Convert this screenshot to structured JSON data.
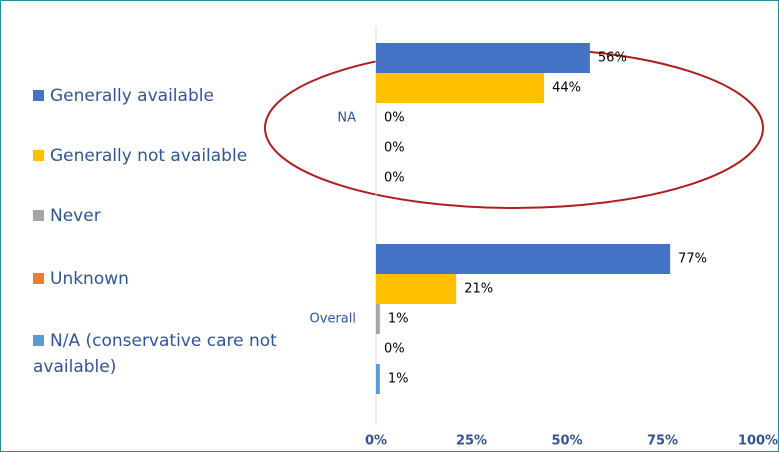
{
  "chart_data": {
    "type": "bar",
    "categories": [
      "NA",
      "Overall"
    ],
    "series": [
      {
        "name": "Generally available",
        "color": "#4472c4",
        "values": [
          56,
          77
        ],
        "value_labels": [
          "56%",
          "77%"
        ]
      },
      {
        "name": "Generally not available",
        "color": "#ffc000",
        "values": [
          44,
          21
        ],
        "value_labels": [
          "44%",
          "21%"
        ]
      },
      {
        "name": "Never",
        "color": "#a5a5a5",
        "values": [
          0,
          1
        ],
        "value_labels": [
          "0%",
          "1%"
        ]
      },
      {
        "name": "Unknown",
        "color": "#ed7d31",
        "values": [
          0,
          0
        ],
        "value_labels": [
          "0%",
          "0%"
        ]
      },
      {
        "name": "N/A (conservative care not available)",
        "color": "#5b9bd5",
        "values": [
          0,
          1
        ],
        "value_labels": [
          "0%",
          "1%"
        ]
      }
    ],
    "xlim": [
      0,
      100
    ],
    "xticks": [
      {
        "value": 0,
        "label": "0%"
      },
      {
        "value": 25,
        "label": "25%"
      },
      {
        "value": 50,
        "label": "50%"
      },
      {
        "value": 75,
        "label": "75%"
      },
      {
        "value": 100,
        "label": "100%"
      }
    ],
    "legend": "left"
  }
}
